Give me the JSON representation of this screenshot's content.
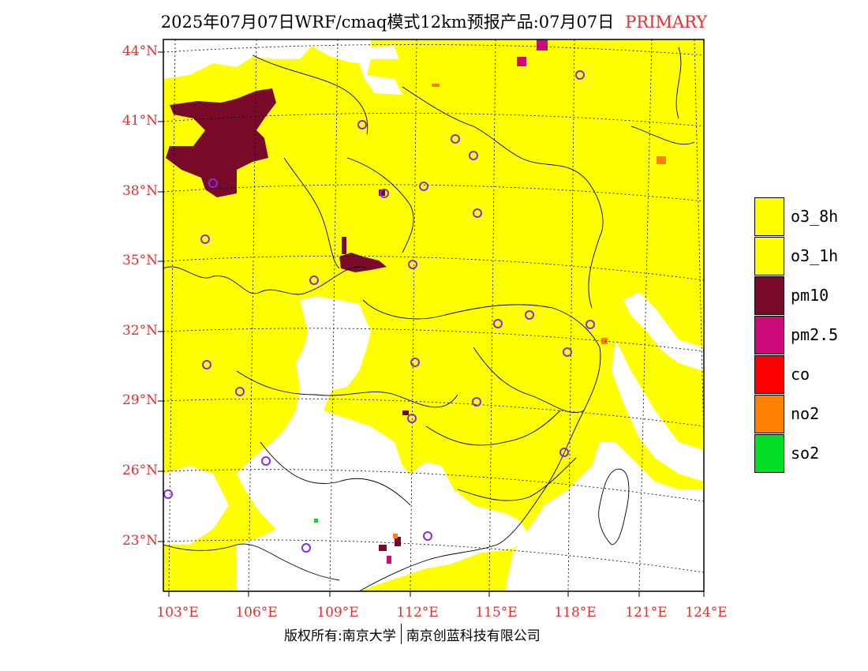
{
  "header": {
    "title": "2025年07月07日WRF/cmaq模式12km预报产品:07月07日",
    "tag": "PRIMARY"
  },
  "axes": {
    "lat_labels": [
      "44°N",
      "41°N",
      "38°N",
      "35°N",
      "32°N",
      "29°N",
      "26°N",
      "23°N"
    ],
    "lon_labels": [
      "103°E",
      "106°E",
      "109°E",
      "112°E",
      "115°E",
      "118°E",
      "121°E",
      "124°E"
    ]
  },
  "legend": {
    "items": [
      {
        "label": "o3_8h",
        "color": "#ffff00"
      },
      {
        "label": "o3_1h",
        "color": "#ffff00"
      },
      {
        "label": "pm10",
        "color": "#7a0a2a"
      },
      {
        "label": "pm2.5",
        "color": "#cc0a7a"
      },
      {
        "label": "co",
        "color": "#ff0000"
      },
      {
        "label": "no2",
        "color": "#ff7f00"
      },
      {
        "label": "so2",
        "color": "#00dd22"
      }
    ]
  },
  "colors": {
    "ozone": "#ffff00",
    "pm10": "#7a0a2a",
    "pm25": "#cc0a7a",
    "no2": "#ff7f00",
    "station_marker": "#8a2be2",
    "label_red": "#e03030"
  },
  "footer": {
    "left": "版权所有:南京大学",
    "right": "南京创蓝科技有限公司"
  }
}
